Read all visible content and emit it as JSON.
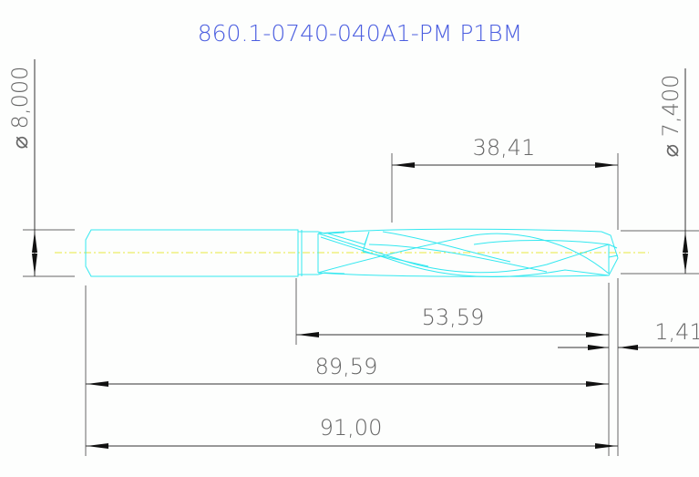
{
  "title": "860.1-0740-040A1-PM P1BM",
  "colors": {
    "title": "#4b5ee0",
    "tool_outline": "#33e8f0",
    "center_axis": "#e8e840",
    "dimension_text": "#666666"
  },
  "dimensions": {
    "shank_diameter": "⌀ 8,000",
    "tip_diameter": "⌀ 7,400",
    "flute_length": "38,41",
    "body_length": "53,59",
    "point_length": "1,41",
    "length_to_point": "89,59",
    "overall_length": "91,00"
  }
}
